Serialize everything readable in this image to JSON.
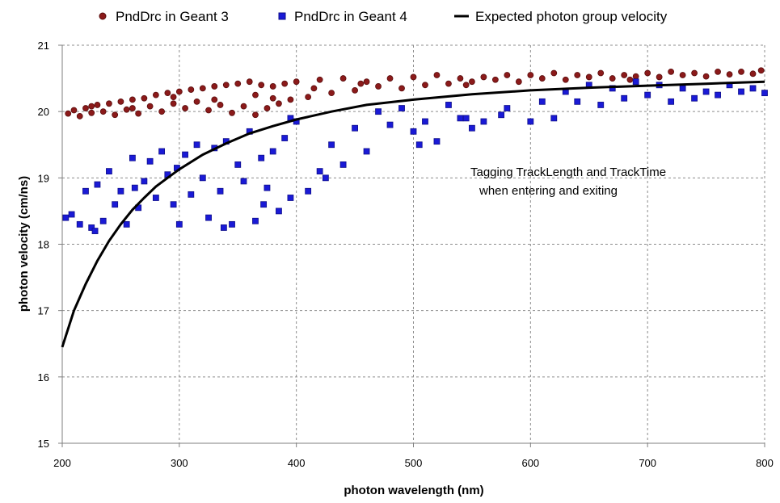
{
  "chart_data": {
    "type": "scatter",
    "title": "",
    "xlabel": "photon wavelength (nm)",
    "ylabel": "photon velocity (cm/ns)",
    "xlim": [
      200,
      800
    ],
    "ylim": [
      15,
      21
    ],
    "xticks": [
      200,
      300,
      400,
      500,
      600,
      700,
      800
    ],
    "yticks": [
      15,
      16,
      17,
      18,
      19,
      20,
      21
    ],
    "grid": true,
    "legend_position": "top",
    "annotation": [
      "Tagging TrackLength and TrackTime",
      "when entering and exiting"
    ],
    "series": [
      {
        "name": "PndDrc in Geant 3",
        "marker": "circle",
        "color": "#8b1a1a",
        "points": [
          [
            205,
            19.97
          ],
          [
            210,
            20.02
          ],
          [
            215,
            19.93
          ],
          [
            220,
            20.05
          ],
          [
            225,
            19.98
          ],
          [
            230,
            20.1
          ],
          [
            235,
            20.0
          ],
          [
            240,
            20.12
          ],
          [
            245,
            19.95
          ],
          [
            250,
            20.15
          ],
          [
            255,
            20.03
          ],
          [
            260,
            20.18
          ],
          [
            265,
            19.97
          ],
          [
            270,
            20.2
          ],
          [
            275,
            20.08
          ],
          [
            280,
            20.25
          ],
          [
            285,
            20.0
          ],
          [
            290,
            20.28
          ],
          [
            295,
            20.12
          ],
          [
            300,
            20.3
          ],
          [
            305,
            20.05
          ],
          [
            310,
            20.33
          ],
          [
            315,
            20.15
          ],
          [
            320,
            20.35
          ],
          [
            325,
            20.02
          ],
          [
            330,
            20.38
          ],
          [
            335,
            20.1
          ],
          [
            340,
            20.4
          ],
          [
            345,
            19.98
          ],
          [
            350,
            20.42
          ],
          [
            355,
            20.08
          ],
          [
            360,
            20.45
          ],
          [
            365,
            19.95
          ],
          [
            370,
            20.4
          ],
          [
            375,
            20.05
          ],
          [
            380,
            20.38
          ],
          [
            385,
            20.12
          ],
          [
            390,
            20.42
          ],
          [
            395,
            20.18
          ],
          [
            400,
            20.45
          ],
          [
            410,
            20.22
          ],
          [
            420,
            20.48
          ],
          [
            430,
            20.28
          ],
          [
            440,
            20.5
          ],
          [
            450,
            20.32
          ],
          [
            460,
            20.45
          ],
          [
            470,
            20.38
          ],
          [
            480,
            20.5
          ],
          [
            490,
            20.35
          ],
          [
            500,
            20.52
          ],
          [
            510,
            20.4
          ],
          [
            520,
            20.55
          ],
          [
            530,
            20.42
          ],
          [
            540,
            20.5
          ],
          [
            550,
            20.45
          ],
          [
            560,
            20.52
          ],
          [
            570,
            20.48
          ],
          [
            580,
            20.55
          ],
          [
            590,
            20.45
          ],
          [
            600,
            20.55
          ],
          [
            610,
            20.5
          ],
          [
            620,
            20.58
          ],
          [
            630,
            20.48
          ],
          [
            640,
            20.55
          ],
          [
            650,
            20.52
          ],
          [
            660,
            20.58
          ],
          [
            670,
            20.5
          ],
          [
            680,
            20.55
          ],
          [
            690,
            20.53
          ],
          [
            700,
            20.58
          ],
          [
            710,
            20.52
          ],
          [
            720,
            20.6
          ],
          [
            730,
            20.55
          ],
          [
            740,
            20.58
          ],
          [
            750,
            20.53
          ],
          [
            760,
            20.6
          ],
          [
            770,
            20.56
          ],
          [
            780,
            20.6
          ],
          [
            790,
            20.57
          ],
          [
            797,
            20.62
          ],
          [
            225,
            20.08
          ],
          [
            260,
            20.05
          ],
          [
            295,
            20.22
          ],
          [
            330,
            20.18
          ],
          [
            365,
            20.25
          ],
          [
            380,
            20.2
          ],
          [
            415,
            20.35
          ],
          [
            455,
            20.42
          ],
          [
            545,
            20.4
          ],
          [
            685,
            20.48
          ]
        ]
      },
      {
        "name": "PndDrc in Geant 4",
        "marker": "square",
        "color": "#1a1ad6",
        "points": [
          [
            203,
            18.4
          ],
          [
            208,
            18.45
          ],
          [
            215,
            18.3
          ],
          [
            220,
            18.8
          ],
          [
            225,
            18.25
          ],
          [
            230,
            18.9
          ],
          [
            235,
            18.35
          ],
          [
            240,
            19.1
          ],
          [
            245,
            18.6
          ],
          [
            250,
            18.8
          ],
          [
            255,
            18.3
          ],
          [
            260,
            19.3
          ],
          [
            265,
            18.55
          ],
          [
            270,
            18.95
          ],
          [
            275,
            19.25
          ],
          [
            280,
            18.7
          ],
          [
            285,
            19.4
          ],
          [
            290,
            19.05
          ],
          [
            295,
            18.6
          ],
          [
            300,
            18.3
          ],
          [
            305,
            19.35
          ],
          [
            310,
            18.75
          ],
          [
            315,
            19.5
          ],
          [
            320,
            19.0
          ],
          [
            325,
            18.4
          ],
          [
            330,
            19.45
          ],
          [
            335,
            18.8
          ],
          [
            340,
            19.55
          ],
          [
            345,
            18.3
          ],
          [
            350,
            19.2
          ],
          [
            355,
            18.95
          ],
          [
            360,
            19.7
          ],
          [
            365,
            18.35
          ],
          [
            370,
            19.3
          ],
          [
            375,
            18.85
          ],
          [
            380,
            19.4
          ],
          [
            385,
            18.5
          ],
          [
            390,
            19.6
          ],
          [
            395,
            18.7
          ],
          [
            400,
            19.85
          ],
          [
            410,
            18.8
          ],
          [
            420,
            19.1
          ],
          [
            430,
            19.5
          ],
          [
            440,
            19.2
          ],
          [
            450,
            19.75
          ],
          [
            460,
            19.4
          ],
          [
            470,
            20.0
          ],
          [
            480,
            19.8
          ],
          [
            490,
            20.05
          ],
          [
            500,
            19.7
          ],
          [
            510,
            19.85
          ],
          [
            520,
            19.55
          ],
          [
            530,
            20.1
          ],
          [
            540,
            19.9
          ],
          [
            550,
            19.75
          ],
          [
            560,
            19.85
          ],
          [
            580,
            20.05
          ],
          [
            600,
            19.85
          ],
          [
            610,
            20.15
          ],
          [
            620,
            19.9
          ],
          [
            630,
            20.3
          ],
          [
            640,
            20.15
          ],
          [
            650,
            20.4
          ],
          [
            660,
            20.1
          ],
          [
            670,
            20.35
          ],
          [
            680,
            20.2
          ],
          [
            690,
            20.45
          ],
          [
            700,
            20.25
          ],
          [
            710,
            20.4
          ],
          [
            720,
            20.15
          ],
          [
            730,
            20.35
          ],
          [
            740,
            20.2
          ],
          [
            750,
            20.3
          ],
          [
            760,
            20.25
          ],
          [
            770,
            20.4
          ],
          [
            780,
            20.3
          ],
          [
            790,
            20.35
          ],
          [
            800,
            20.28
          ],
          [
            228,
            18.2
          ],
          [
            262,
            18.85
          ],
          [
            298,
            19.15
          ],
          [
            338,
            18.25
          ],
          [
            372,
            18.6
          ],
          [
            395,
            19.9
          ],
          [
            425,
            19.0
          ],
          [
            505,
            19.5
          ],
          [
            545,
            19.9
          ],
          [
            575,
            19.95
          ]
        ]
      },
      {
        "name": "Expected photon group velocity",
        "marker": "line",
        "color": "#000000",
        "points": [
          [
            200,
            16.45
          ],
          [
            210,
            17.0
          ],
          [
            220,
            17.4
          ],
          [
            230,
            17.75
          ],
          [
            240,
            18.05
          ],
          [
            250,
            18.3
          ],
          [
            260,
            18.52
          ],
          [
            270,
            18.7
          ],
          [
            280,
            18.87
          ],
          [
            290,
            19.0
          ],
          [
            300,
            19.13
          ],
          [
            320,
            19.35
          ],
          [
            340,
            19.52
          ],
          [
            360,
            19.67
          ],
          [
            380,
            19.78
          ],
          [
            400,
            19.88
          ],
          [
            430,
            20.0
          ],
          [
            460,
            20.1
          ],
          [
            500,
            20.18
          ],
          [
            550,
            20.26
          ],
          [
            600,
            20.32
          ],
          [
            650,
            20.36
          ],
          [
            700,
            20.39
          ],
          [
            750,
            20.42
          ],
          [
            800,
            20.45
          ]
        ]
      }
    ]
  }
}
